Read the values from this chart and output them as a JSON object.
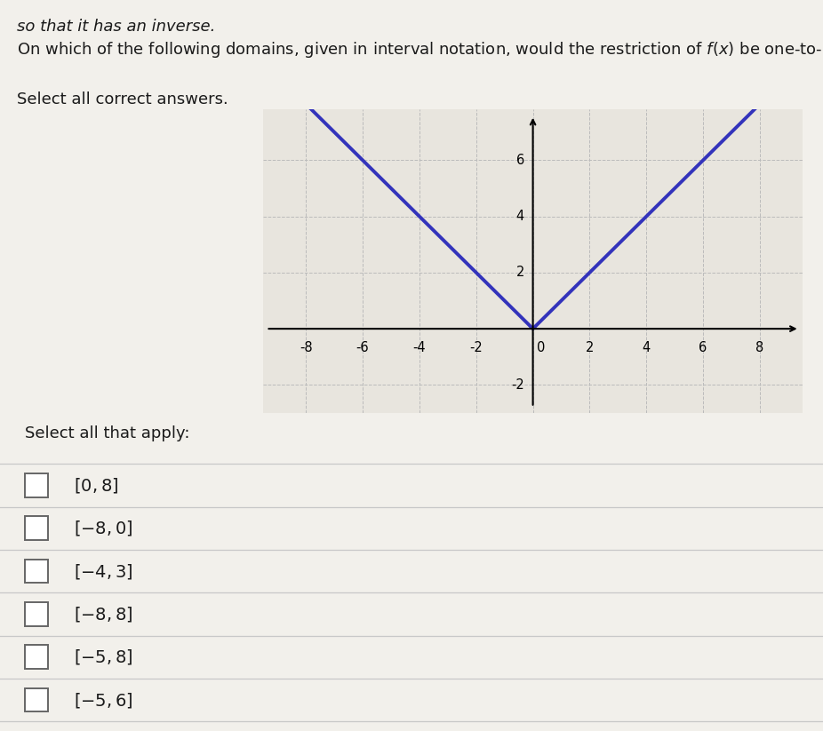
{
  "title_line1": "so that it has an inverse.",
  "title_line2": "On which of the following domains, given in interval notation, would the restriction of $f(x)$ be one-to-one?",
  "select_label": "Select all correct answers.",
  "apply_label": "Select all that apply:",
  "choices": [
    "[0,8]",
    "[-8,0]",
    "[-4,3]",
    "[-8,8]",
    "[-5,8]",
    "[-5,6]"
  ],
  "graph_xlim": [
    -9.5,
    9.5
  ],
  "graph_ylim": [
    -3.0,
    7.8
  ],
  "x_ticks": [
    -8,
    -6,
    -4,
    -2,
    0,
    2,
    4,
    6,
    8
  ],
  "y_ticks": [
    -2,
    2,
    4,
    6
  ],
  "curve_color": "#3333bb",
  "curve_linewidth": 2.8,
  "grid_color": "#bbbbbb",
  "grid_style": "--",
  "bg_color": "#f2f0eb",
  "graph_bg_color": "#e8e5de",
  "text_color": "#1a1a1a",
  "font_size_body": 13,
  "font_size_axis": 10.5,
  "font_size_choice": 14
}
